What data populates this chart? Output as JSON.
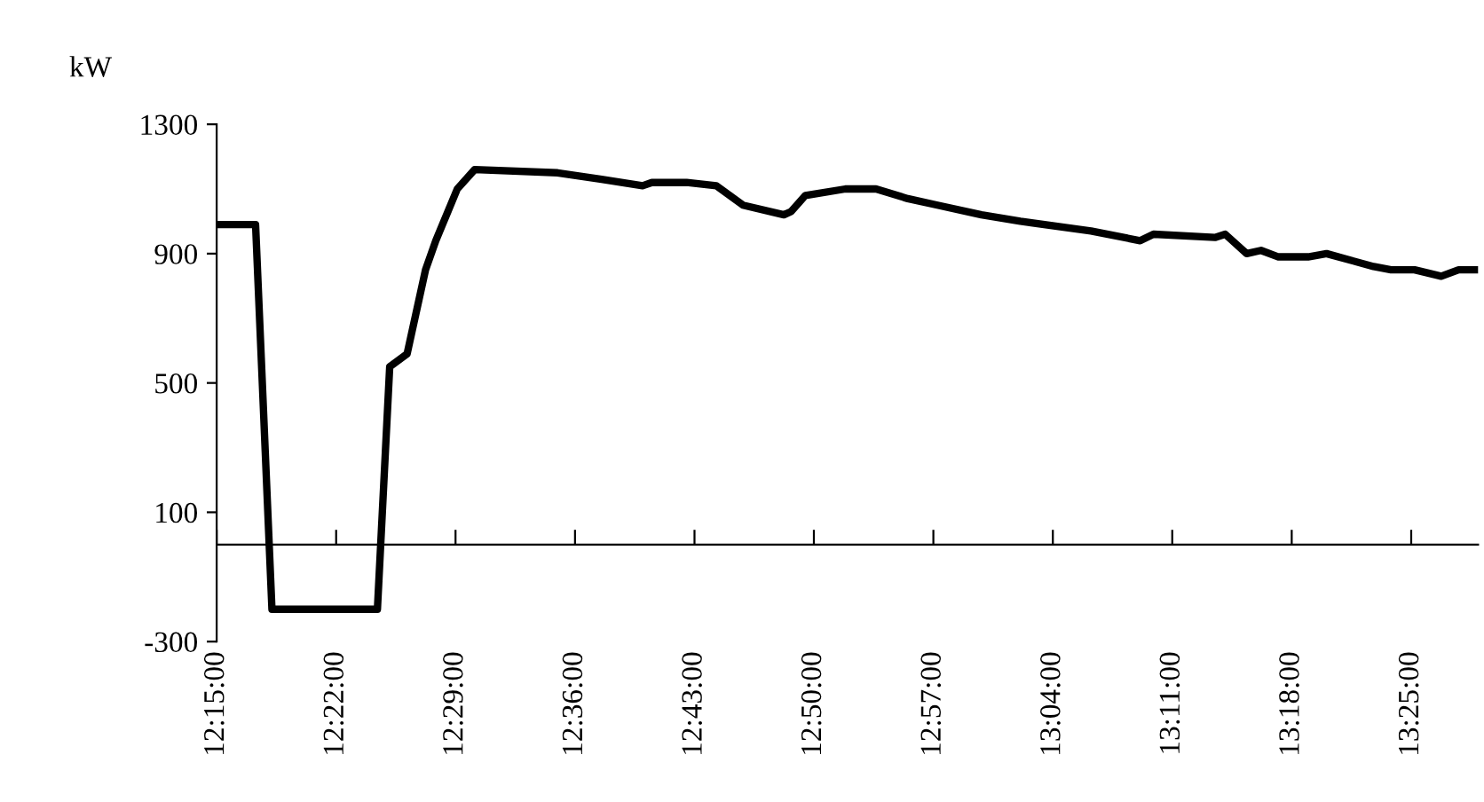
{
  "chart_data": {
    "type": "line",
    "ylabel": "kW",
    "x": [
      12.25,
      12.288,
      12.304,
      12.407,
      12.419,
      12.436,
      12.454,
      12.464,
      12.485,
      12.502,
      12.583,
      12.626,
      12.666,
      12.675,
      12.709,
      12.738,
      12.764,
      12.804,
      12.811,
      12.825,
      12.864,
      12.894,
      12.925,
      12.954,
      12.997,
      13.035,
      13.104,
      13.152,
      13.165,
      13.225,
      13.235,
      13.256,
      13.27,
      13.287,
      13.316,
      13.334,
      13.38,
      13.397,
      13.42,
      13.446,
      13.463,
      13.482
    ],
    "series": [
      {
        "color": "#000000",
        "values": [
          990,
          990,
          -200,
          -200,
          550,
          590,
          850,
          940,
          1100,
          1160,
          1150,
          1130,
          1110,
          1120,
          1120,
          1110,
          1050,
          1020,
          1030,
          1080,
          1100,
          1100,
          1070,
          1050,
          1020,
          1000,
          970,
          940,
          960,
          950,
          960,
          900,
          910,
          890,
          890,
          900,
          860,
          850,
          850,
          830,
          850,
          850
        ]
      }
    ],
    "xlim": [
      12.25,
      13.482
    ],
    "ylim": [
      -300,
      1300
    ],
    "yticks": [
      {
        "value": -300,
        "label": "-300"
      },
      100,
      500,
      900,
      1300
    ],
    "xticks": [
      {
        "value": 12.25,
        "label": "12:15:00"
      },
      {
        "value": 12.3667,
        "label": "12:22:00"
      },
      {
        "value": 12.4833,
        "label": "12:29:00"
      },
      {
        "value": 12.6,
        "label": "12:36:00"
      },
      {
        "value": 12.7167,
        "label": "12:43:00"
      },
      {
        "value": 12.8333,
        "label": "12:50:00"
      },
      {
        "value": 12.95,
        "label": "12:57:00"
      },
      {
        "value": 13.0667,
        "label": "13:04:00"
      },
      {
        "value": 13.1833,
        "label": "13:11:00"
      },
      {
        "value": 13.3,
        "label": "13:18:00"
      },
      {
        "value": 13.4167,
        "label": "13:25:00"
      }
    ],
    "grid": false,
    "legend": false,
    "marker": "none",
    "line_style": "solid"
  }
}
